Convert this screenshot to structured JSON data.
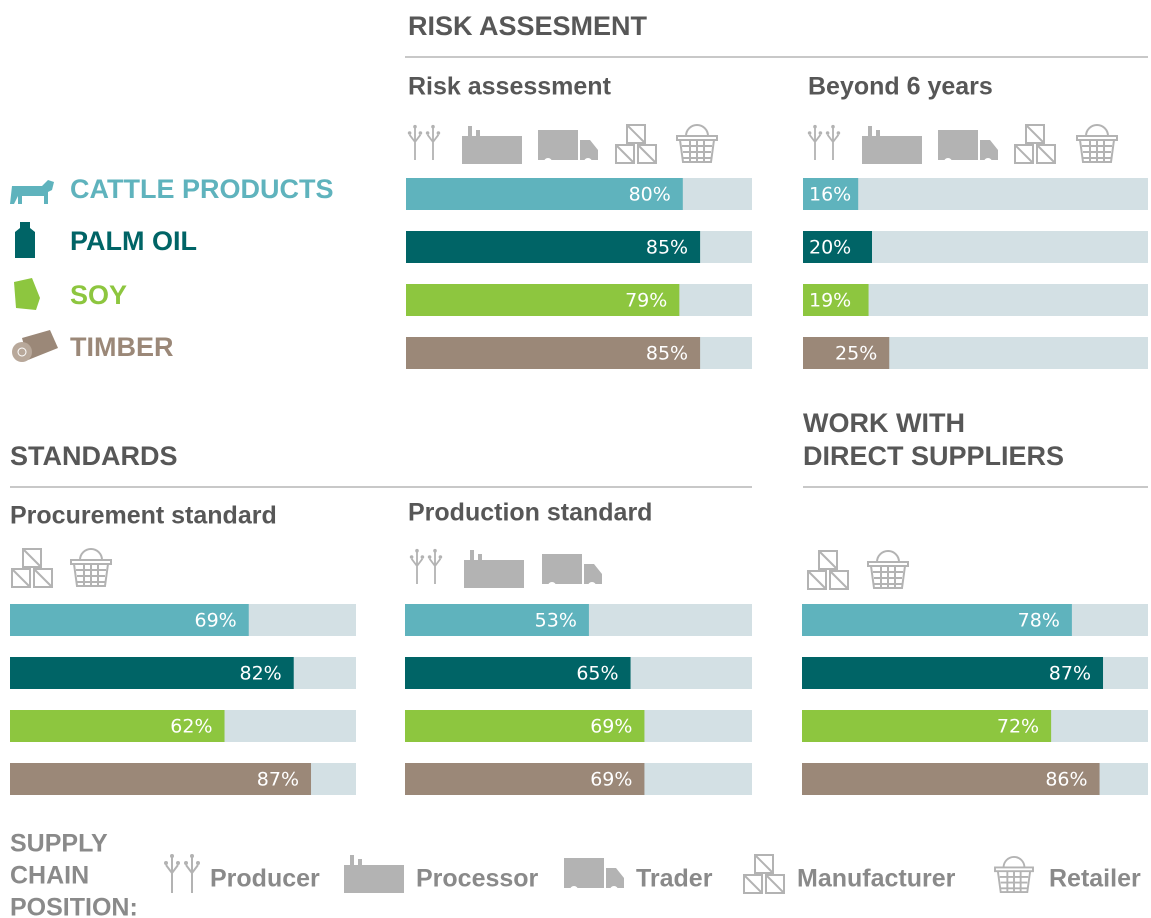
{
  "headings": [
    "RISK ASSESMENT",
    "STANDARDS",
    "WORK WITH",
    "DIRECT SUPPLIERS"
  ],
  "commodities": [
    {
      "name": "CATTLE PRODUCTS",
      "color": "#5fb3bd"
    },
    {
      "name": "PALM OIL",
      "color": "#006466"
    },
    {
      "name": "SOY",
      "color": "#8dc63f"
    },
    {
      "name": "TIMBER",
      "color": "#9b8878"
    }
  ],
  "chart_data": [
    {
      "type": "bar",
      "title": "Risk assessment",
      "values": [
        80,
        85,
        79,
        85
      ],
      "value_labels": [
        "80%",
        "85%",
        "79%",
        "85%"
      ],
      "xlim": [
        0,
        100
      ]
    },
    {
      "type": "bar",
      "title": "Beyond 6 years",
      "values": [
        16,
        20,
        19,
        25
      ],
      "value_labels": [
        "16%",
        "20%",
        "19%",
        "25%"
      ],
      "xlim": [
        0,
        100
      ]
    },
    {
      "type": "bar",
      "title": "Procurement standard",
      "values": [
        69,
        82,
        62,
        87
      ],
      "value_labels": [
        "69%",
        "82%",
        "62%",
        "87%"
      ],
      "xlim": [
        0,
        100
      ]
    },
    {
      "type": "bar",
      "title": "Production standard",
      "values": [
        53,
        65,
        69,
        69
      ],
      "value_labels": [
        "53%",
        "65%",
        "69%",
        "69%"
      ],
      "xlim": [
        0,
        100
      ]
    },
    {
      "type": "bar",
      "values": [
        78,
        87,
        72,
        86
      ],
      "value_labels": [
        "78%",
        "87%",
        "72%",
        "86%"
      ],
      "xlim": [
        0,
        100
      ]
    }
  ],
  "legend": {
    "title": [
      "SUPPLY",
      "CHAIN",
      "POSITION:"
    ],
    "positions": [
      "Producer",
      "Processor",
      "Trader",
      "Manufacturer",
      "Retailer"
    ]
  }
}
